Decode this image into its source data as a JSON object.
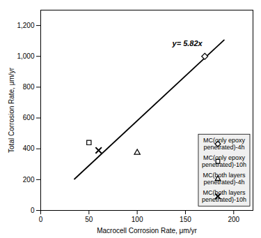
{
  "chart_data": {
    "type": "scatter",
    "xlabel": "Macrocell Corrosion Rate, μm/yr",
    "ylabel": "Total Corrosion Rate, μm/yr",
    "xlim": [
      0,
      220
    ],
    "ylim": [
      0,
      1300
    ],
    "xticks": [
      0,
      50,
      100,
      150,
      200
    ],
    "yticks": [
      0,
      200,
      400,
      600,
      800,
      1000,
      1200
    ],
    "annotation": "y= 5.82x",
    "legend": "lower right",
    "series": [
      {
        "type": "line",
        "color": "black",
        "x": [
          35,
          190
        ],
        "values": [
          203.7,
          1105.8
        ]
      },
      {
        "name": "MC(only epoxy\npenetrated)-4h",
        "type": "scatter",
        "marker": "diamond",
        "color": "black",
        "x": [
          170
        ],
        "values": [
          1000
        ]
      },
      {
        "name": "MC(only epoxy\npenetrated)-10h",
        "type": "scatter",
        "marker": "square",
        "color": "black",
        "x": [
          50
        ],
        "values": [
          440
        ]
      },
      {
        "name": "MC(both layers\npenetrated)-4h",
        "type": "scatter",
        "marker": "triangle",
        "color": "black",
        "x": [
          100
        ],
        "values": [
          375
        ]
      },
      {
        "name": "MC(both layers\npenetrated)-10h",
        "type": "scatter",
        "marker": "x",
        "color": "black",
        "x": [
          60
        ],
        "values": [
          390
        ]
      }
    ]
  }
}
